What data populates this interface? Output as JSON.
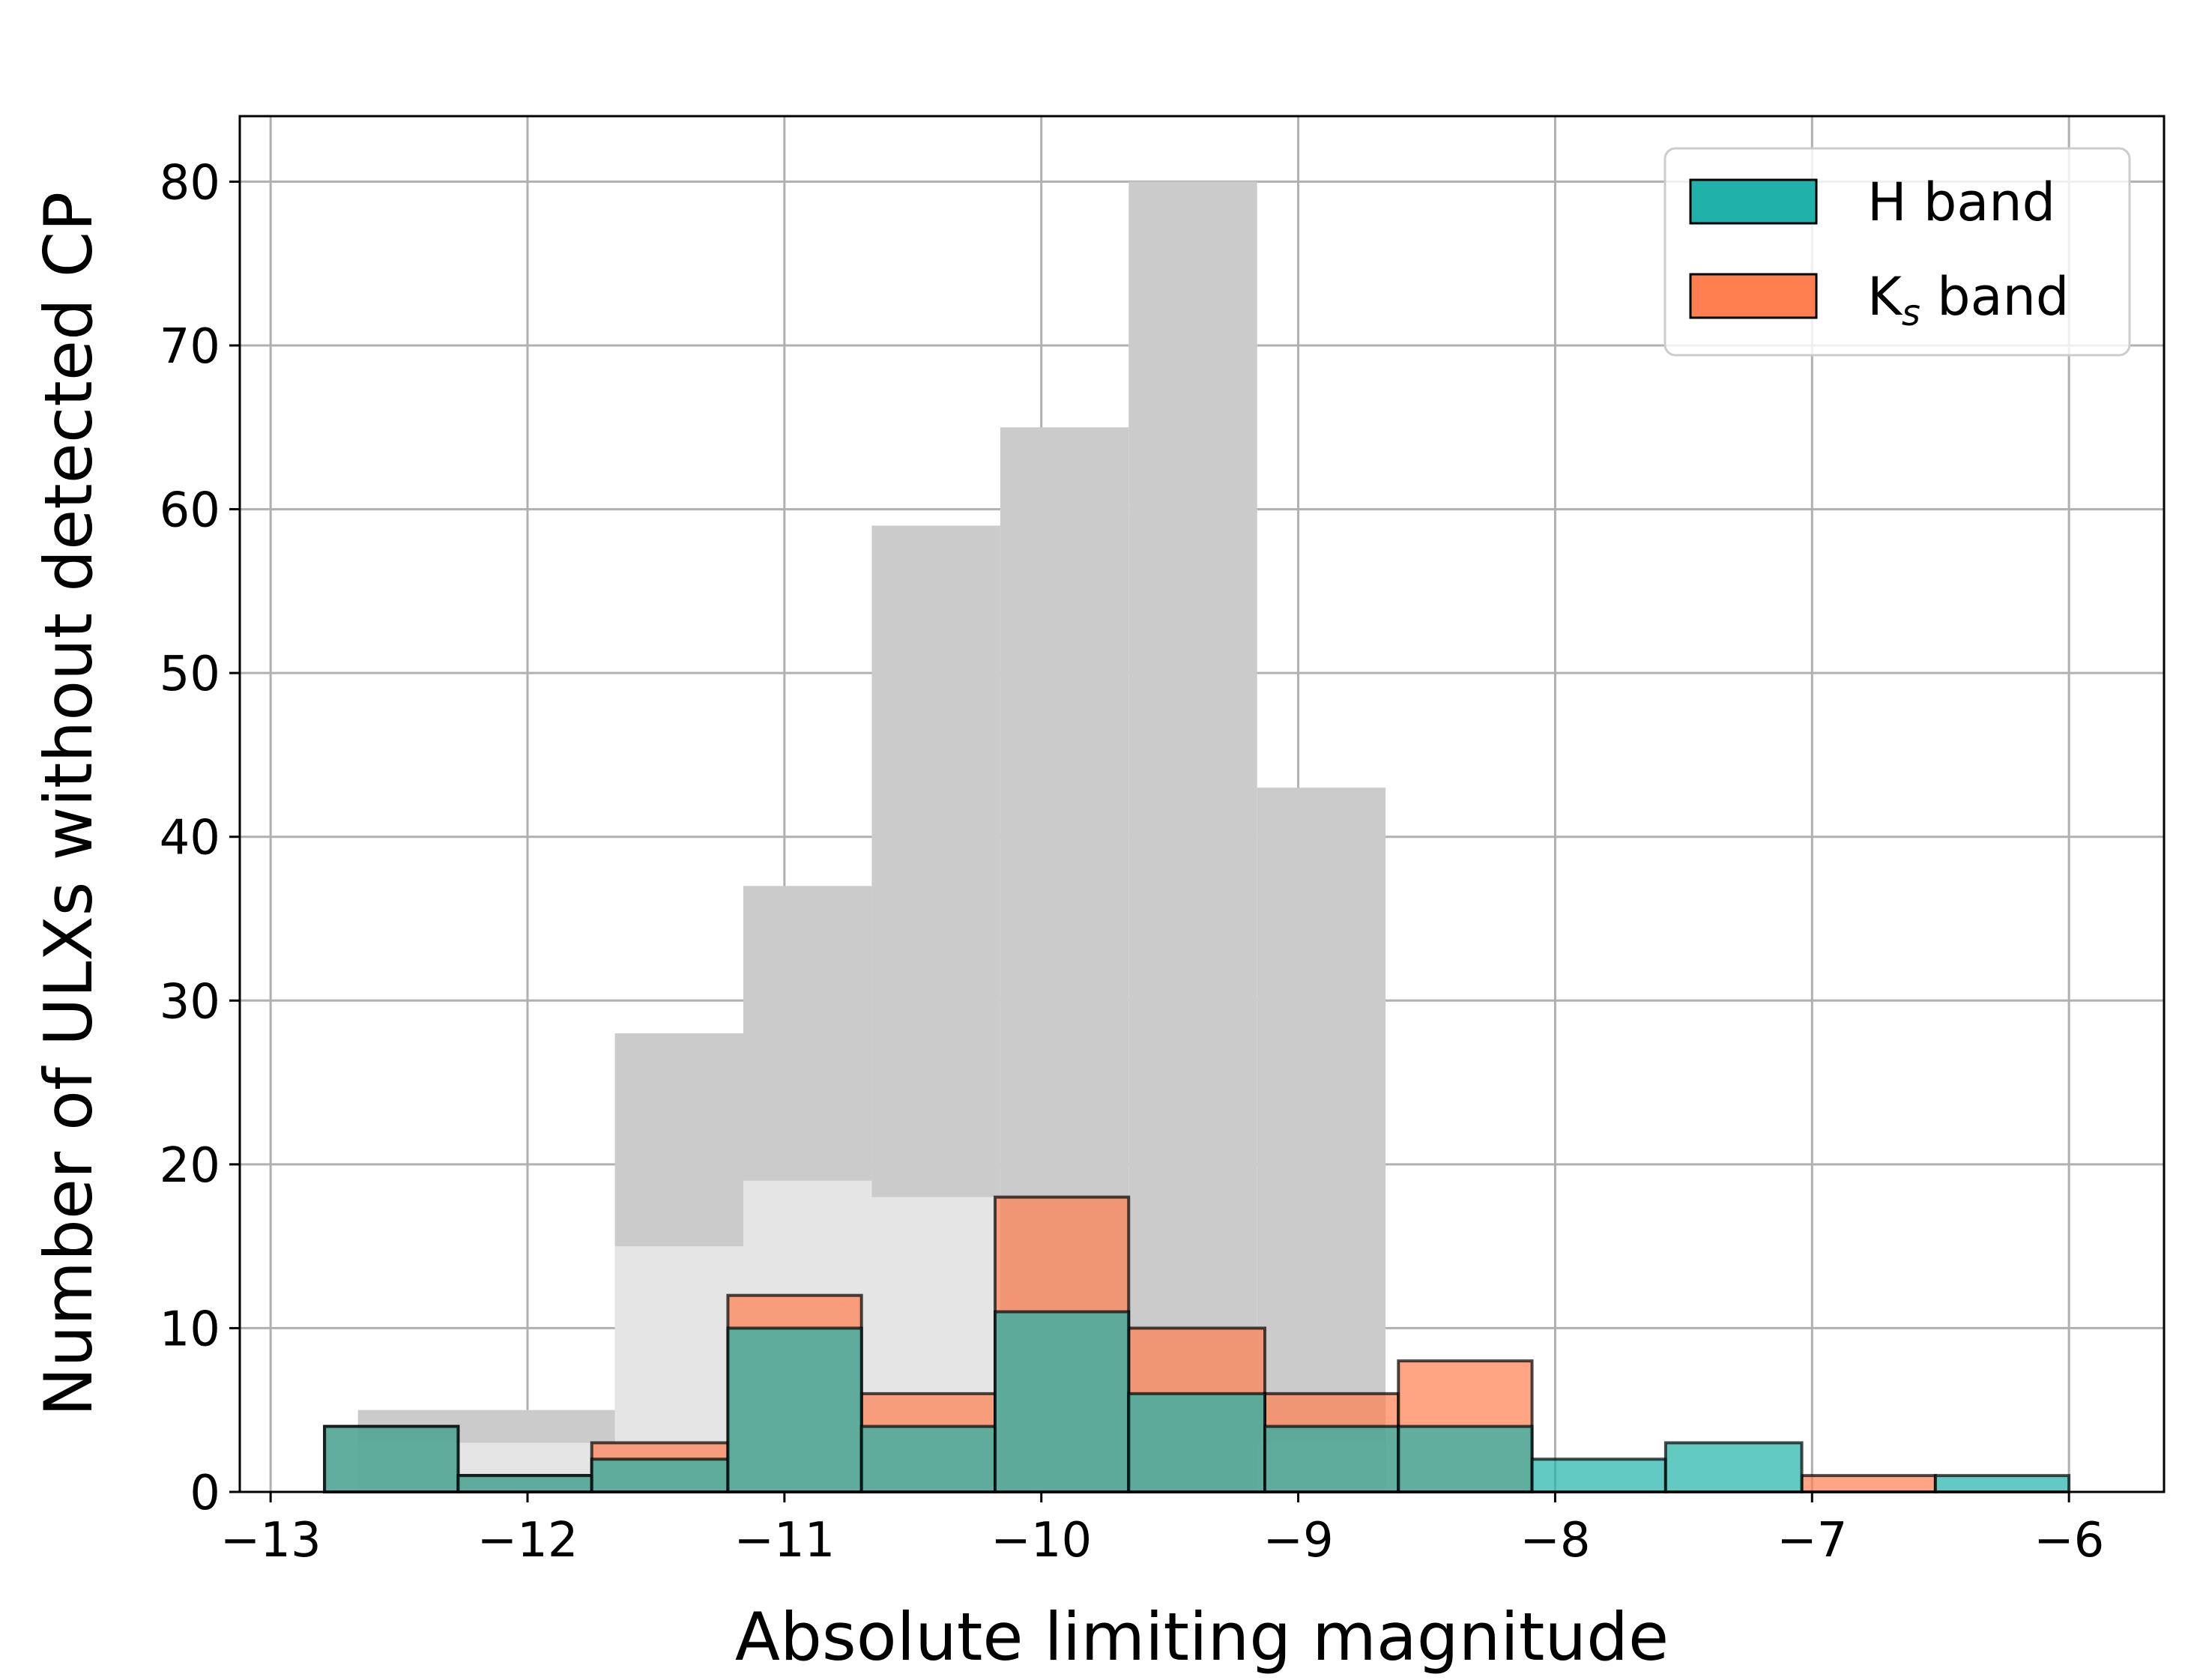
{
  "chart_data": {
    "type": "bar",
    "title": "",
    "xlabel": "Absolute limiting magnitude",
    "ylabel": "Number of ULXs without detected CP",
    "xlim": [
      -13.12,
      -5.63
    ],
    "ylim": [
      0,
      84
    ],
    "grid": true,
    "xticks": [
      {
        "value": -13,
        "label": "−13"
      },
      {
        "value": -12,
        "label": "−12"
      },
      {
        "value": -11,
        "label": "−11"
      },
      {
        "value": -10,
        "label": "−10"
      },
      {
        "value": -9,
        "label": "−9"
      },
      {
        "value": -8,
        "label": "−8"
      },
      {
        "value": -7,
        "label": "−7"
      },
      {
        "value": -6,
        "label": "−6"
      }
    ],
    "yticks": [
      {
        "value": 0,
        "label": "0"
      },
      {
        "value": 10,
        "label": "10"
      },
      {
        "value": 20,
        "label": "20"
      },
      {
        "value": 30,
        "label": "30"
      },
      {
        "value": 40,
        "label": "40"
      },
      {
        "value": 50,
        "label": "50"
      },
      {
        "value": 60,
        "label": "60"
      },
      {
        "value": 70,
        "label": "70"
      },
      {
        "value": 80,
        "label": "80"
      }
    ],
    "background_series": [
      {
        "name": "total-dark",
        "color": "#cbcbcb",
        "bin_edges": [
          -12.66,
          -11.66,
          -11.16,
          -10.66,
          -10.16,
          -9.66,
          -9.16,
          -8.66
        ],
        "values": [
          5,
          28,
          37,
          59,
          65,
          80,
          43
        ]
      },
      {
        "name": "total-light",
        "color": "#e5e5e5",
        "bin_edges": [
          -12.66,
          -11.66,
          -11.16,
          -10.66,
          -10.16,
          -9.66,
          -9.16,
          -8.66
        ],
        "values": [
          3,
          15,
          19,
          18,
          0,
          0,
          3
        ]
      }
    ],
    "series": [
      {
        "name": "H band",
        "legend_label": "H band",
        "color": "#20b2aa",
        "bin_edges": [
          -12.79,
          -12.27,
          -11.75,
          -11.22,
          -10.7,
          -10.18,
          -9.66,
          -9.13,
          -8.61,
          -8.09,
          -7.57,
          -7.04,
          -6.52,
          -6.0
        ],
        "values": [
          4,
          1,
          2,
          10,
          4,
          11,
          6,
          4,
          4,
          2,
          3,
          0,
          1
        ]
      },
      {
        "name": "K_s band",
        "legend_label": "K",
        "legend_subscript": "s",
        "legend_suffix": " band",
        "color": "#ff7f50",
        "bin_edges": [
          -12.79,
          -12.27,
          -11.75,
          -11.22,
          -10.7,
          -10.18,
          -9.66,
          -9.13,
          -8.61,
          -8.09,
          -7.57,
          -7.04,
          -6.52,
          -6.0
        ],
        "values": [
          4,
          1,
          3,
          12,
          6,
          18,
          10,
          6,
          8,
          0,
          0,
          1,
          0
        ]
      }
    ],
    "legend_position": "top-right"
  }
}
